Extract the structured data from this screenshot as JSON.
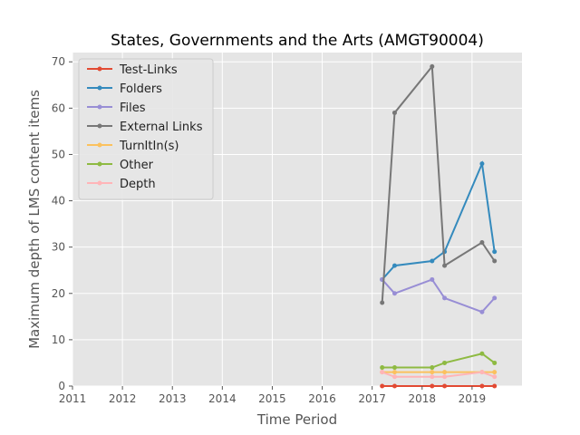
{
  "chart_data": {
    "type": "line",
    "title": "States, Governments and the Arts (AMGT90004)",
    "xlabel": "Time Period",
    "ylabel": "Maximum depth of LMS content items",
    "xlim": [
      2011,
      2020
    ],
    "ylim": [
      0,
      72
    ],
    "x_ticks": [
      "2011",
      "2012",
      "2013",
      "2014",
      "2015",
      "2016",
      "2017",
      "2018",
      "2019"
    ],
    "y_ticks": [
      "0",
      "10",
      "20",
      "30",
      "40",
      "50",
      "60",
      "70"
    ],
    "grid": true,
    "legend_position": "top-left",
    "x": [
      2017.2,
      2017.45,
      2018.2,
      2018.45,
      2019.2,
      2019.45
    ],
    "series": [
      {
        "name": "Test-Links",
        "color": "#e24a33",
        "values": [
          0,
          0,
          0,
          0,
          0,
          0
        ]
      },
      {
        "name": "Folders",
        "color": "#348abd",
        "values": [
          23,
          26,
          27,
          29,
          48,
          29
        ]
      },
      {
        "name": "Files",
        "color": "#988ed5",
        "values": [
          23,
          20,
          23,
          19,
          16,
          19
        ]
      },
      {
        "name": "External Links",
        "color": "#777777",
        "values": [
          18,
          59,
          69,
          26,
          31,
          27
        ]
      },
      {
        "name": "TurnItIn(s)",
        "color": "#fbc15e",
        "values": [
          3,
          3,
          3,
          3,
          3,
          3
        ]
      },
      {
        "name": "Other",
        "color": "#8eba42",
        "values": [
          4,
          4,
          4,
          5,
          7,
          5
        ]
      },
      {
        "name": "Depth",
        "color": "#ffb5b8",
        "values": [
          3,
          2,
          2,
          2,
          3,
          2
        ]
      }
    ]
  }
}
